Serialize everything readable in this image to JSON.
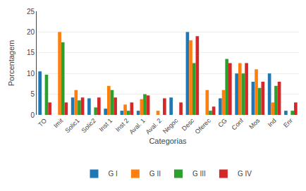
{
  "chart_data": {
    "type": "bar",
    "xlabel": "Categorias",
    "ylabel": "Porcentagem",
    "categories": [
      "TO",
      "Imit",
      "Solic1",
      "Solic2",
      "Inst 1",
      "Inst 2",
      "Aval. 1",
      "Aval. 2",
      "Negoc",
      "Desc",
      "Oferec",
      "CG",
      "Conf",
      "Mos",
      "Ind",
      "Enr"
    ],
    "series": [
      {
        "name": "G I",
        "values": [
          10.5,
          0,
          4.2,
          4.0,
          1.5,
          1.0,
          1.0,
          0,
          4.2,
          20.0,
          0,
          4.0,
          10.0,
          8.0,
          10.0,
          1.0
        ]
      },
      {
        "name": "G II",
        "values": [
          0,
          20.0,
          6.0,
          0,
          7.0,
          2.5,
          3.8,
          1.0,
          0,
          18.0,
          6.0,
          6.0,
          12.5,
          11.0,
          3.0,
          0
        ]
      },
      {
        "name": "G III",
        "values": [
          9.7,
          17.5,
          3.5,
          1.8,
          6.0,
          1.0,
          5.0,
          0,
          0,
          12.5,
          1.0,
          13.5,
          10.0,
          6.5,
          7.0,
          1.0
        ]
      },
      {
        "name": "G IV",
        "values": [
          3.0,
          3.0,
          4.2,
          4.2,
          4.2,
          3.0,
          4.7,
          4.0,
          3.0,
          19.0,
          2.0,
          12.5,
          12.5,
          8.0,
          8.0,
          3.0
        ]
      }
    ],
    "ylim": [
      0,
      25
    ],
    "yticks": [
      0,
      5,
      10,
      15,
      20,
      25
    ],
    "grid": true,
    "legend": "bottom"
  }
}
